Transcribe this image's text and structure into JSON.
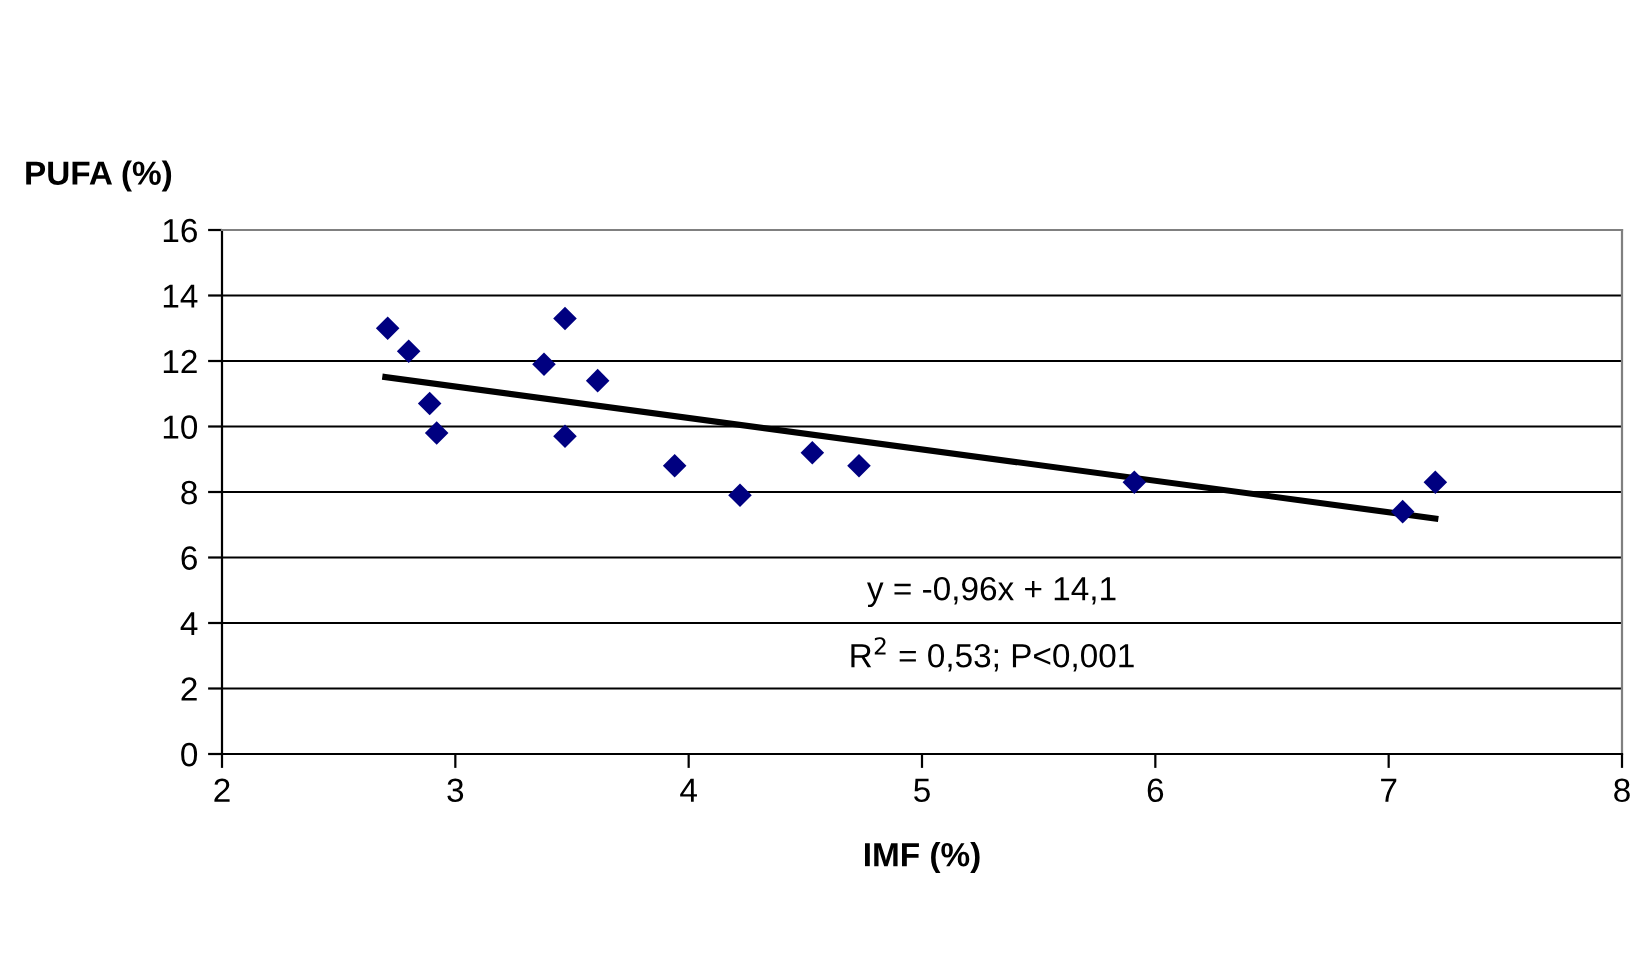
{
  "chart_data": {
    "type": "scatter",
    "xlabel": "IMF (%)",
    "ylabel": "PUFA (%)",
    "xlim": [
      2,
      8
    ],
    "xticks": [
      2,
      3,
      4,
      5,
      6,
      7,
      8
    ],
    "ylim": [
      0,
      16
    ],
    "yticks": [
      0,
      2,
      4,
      6,
      8,
      10,
      12,
      14,
      16
    ],
    "grid": "y",
    "legend": false,
    "series": [
      {
        "marker": "diamond",
        "color": "#000080",
        "x": [
          2.71,
          2.8,
          2.89,
          2.92,
          3.38,
          3.47,
          3.47,
          3.61,
          3.94,
          4.22,
          4.53,
          4.73,
          5.91,
          7.06,
          7.2
        ],
        "values": [
          13.0,
          12.3,
          10.7,
          9.8,
          11.9,
          13.3,
          9.7,
          11.4,
          8.8,
          7.9,
          9.2,
          8.8,
          8.3,
          7.4,
          8.3
        ]
      },
      {
        "type": "line",
        "marker": "none",
        "color": "#000000",
        "line_style": "solid",
        "x": [
          2.7,
          7.2
        ],
        "values": [
          11.51,
          7.19
        ]
      }
    ],
    "annotations": [
      "y = -0,96x + 14,1",
      "R$^{2}$ = 0,53; P<0,001"
    ]
  }
}
